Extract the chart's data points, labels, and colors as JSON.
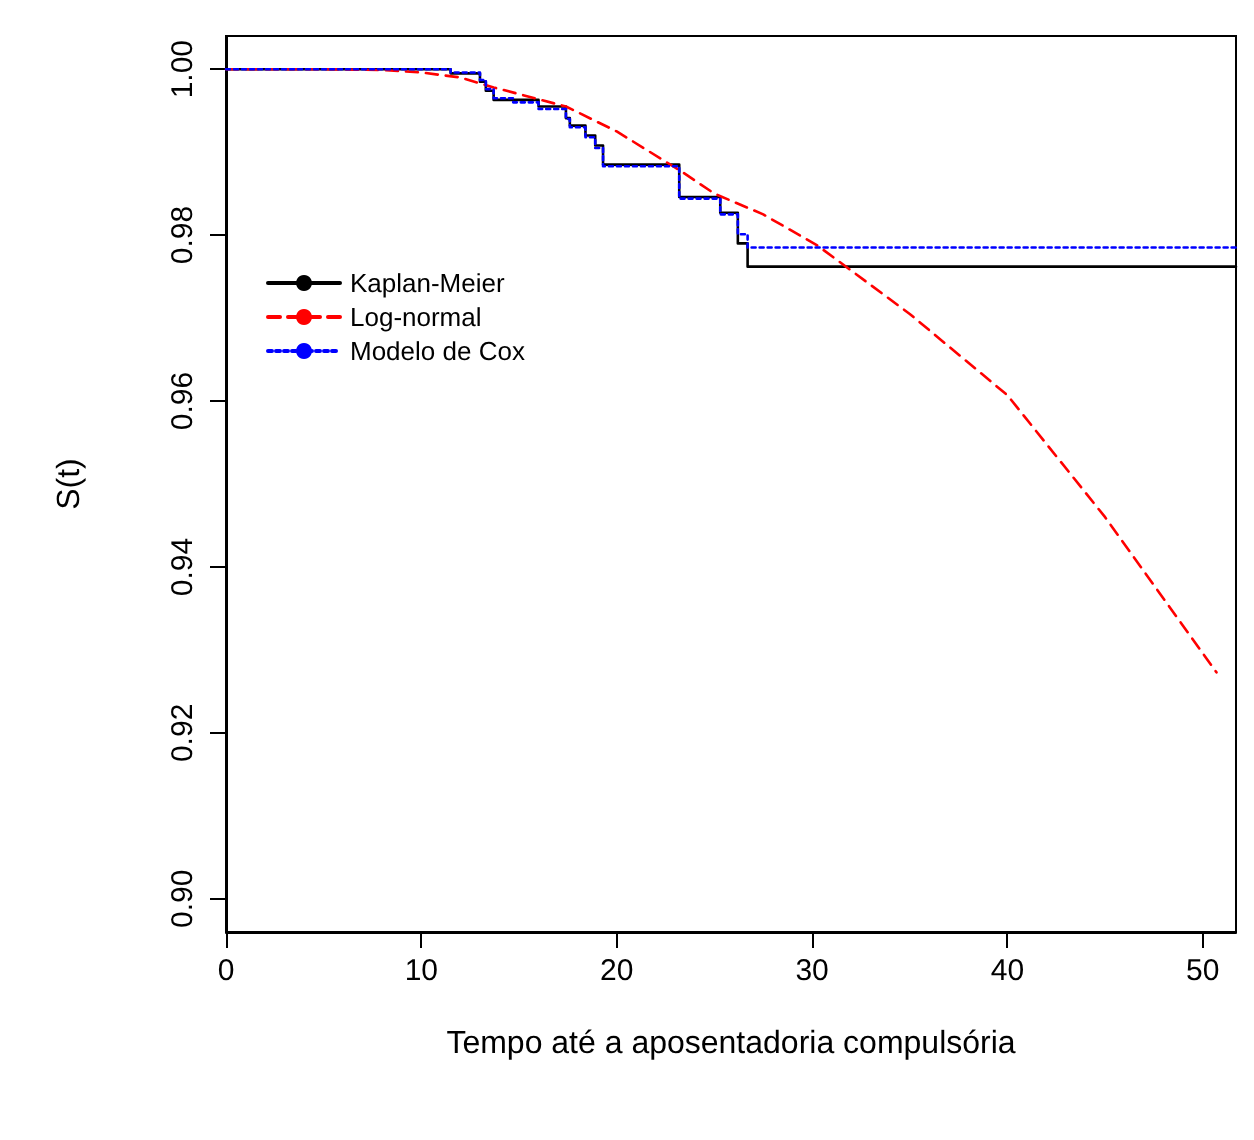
{
  "chart_data": {
    "type": "step",
    "xlabel": "Tempo até a aposentadoria compulsória",
    "ylabel": "S(t)",
    "xlim": [
      0,
      51.7
    ],
    "ylim": [
      0.896,
      1.004
    ],
    "xticks": [
      0,
      10,
      20,
      30,
      40,
      50
    ],
    "yticks": [
      {
        "value": 0.9,
        "label": "0.90"
      },
      {
        "value": 0.92,
        "label": "0.92"
      },
      {
        "value": 0.94,
        "label": "0.94"
      },
      {
        "value": 0.96,
        "label": "0.96"
      },
      {
        "value": 0.98,
        "label": "0.98"
      },
      {
        "value": 1.0,
        "label": "1.00"
      }
    ],
    "grid": false,
    "legend": "top left",
    "marker": "none",
    "series": [
      {
        "name": "Kaplan-Meier",
        "type": "step",
        "color": "#000000",
        "line_style": "solid",
        "x": [
          0,
          11.5,
          13.0,
          13.3,
          13.7,
          14.7,
          16.0,
          17.4,
          17.6,
          18.4,
          18.9,
          19.3,
          20.8,
          23.2,
          25.3,
          26.2,
          26.7,
          51.7
        ],
        "values": [
          1.0,
          0.9995,
          0.9985,
          0.9974,
          0.9963,
          0.9963,
          0.9955,
          0.9941,
          0.9932,
          0.992,
          0.9908,
          0.9885,
          0.9885,
          0.9846,
          0.9827,
          0.979,
          0.9762,
          0.9762
        ]
      },
      {
        "name": "Log-normal",
        "type": "line",
        "color": "#ff0000",
        "line_style": "dashed",
        "x": [
          0,
          5,
          8,
          10,
          12,
          13.7,
          15,
          17.4,
          20,
          23.3,
          25,
          27.5,
          30.3,
          35,
          40,
          45,
          50.7
        ],
        "values": [
          1.0,
          1.0,
          0.9999,
          0.9996,
          0.999,
          0.9978,
          0.997,
          0.9955,
          0.9925,
          0.9877,
          0.985,
          0.9825,
          0.9787,
          0.9705,
          0.9607,
          0.946,
          0.9273
        ]
      },
      {
        "name": "Modelo de Cox",
        "type": "step",
        "color": "#0000ff",
        "line_style": "dotted",
        "x": [
          0,
          11.5,
          13.0,
          13.3,
          13.7,
          14.7,
          16.0,
          17.4,
          17.6,
          18.4,
          18.9,
          19.3,
          20.8,
          23.2,
          25.3,
          26.2,
          26.7,
          51.7
        ],
        "values": [
          1.0,
          0.9996,
          0.9987,
          0.9976,
          0.9965,
          0.996,
          0.9952,
          0.994,
          0.993,
          0.9918,
          0.9905,
          0.9883,
          0.9883,
          0.9844,
          0.9825,
          0.9801,
          0.9785,
          0.9785
        ]
      }
    ]
  }
}
